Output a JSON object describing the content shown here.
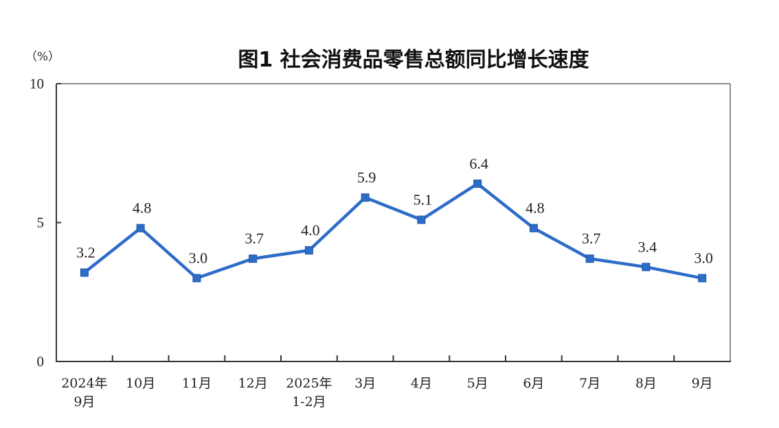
{
  "colors": {
    "series": "#2d6cc8",
    "axis": "#333333",
    "frame": "#8c8c8c",
    "text": "#222222"
  },
  "chart_data": {
    "type": "line",
    "title": "图1  社会消费品零售总额同比增长速度",
    "ylabel": "（%）",
    "xlabel": "",
    "ylim": [
      0,
      10
    ],
    "yticks": [
      0,
      5,
      10
    ],
    "grid": false,
    "legend": "none",
    "categories": [
      [
        "2024年",
        "9月"
      ],
      [
        "10月"
      ],
      [
        "11月"
      ],
      [
        "12月"
      ],
      [
        "2025年",
        "1-2月"
      ],
      [
        "3月"
      ],
      [
        "4月"
      ],
      [
        "5月"
      ],
      [
        "6月"
      ],
      [
        "7月"
      ],
      [
        "8月"
      ],
      [
        "9月"
      ]
    ],
    "series": [
      {
        "values": [
          3.2,
          4.8,
          3.0,
          3.7,
          4.0,
          5.9,
          5.1,
          6.4,
          4.8,
          3.7,
          3.4,
          3.0
        ],
        "labels": [
          "3.2",
          "4.8",
          "3.0",
          "3.7",
          "4.0",
          "5.9",
          "5.1",
          "6.4",
          "4.8",
          "3.7",
          "3.4",
          "3.0"
        ],
        "marker": "square"
      }
    ]
  }
}
